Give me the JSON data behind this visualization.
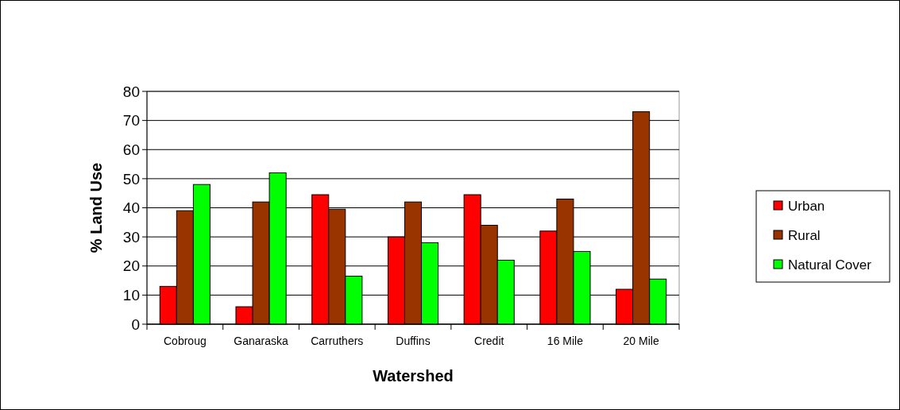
{
  "chart_data": {
    "type": "bar",
    "xlabel": "Watershed",
    "ylabel": "% Land Use",
    "categories": [
      "Cobroug",
      "Ganaraska",
      "Carruthers",
      "Duffins",
      "Credit",
      "16 Mile",
      "20 Mile"
    ],
    "series": [
      {
        "name": "Urban",
        "color": "#ff0000",
        "values": [
          13,
          6,
          44.5,
          30,
          44.5,
          32,
          12
        ]
      },
      {
        "name": "Rural",
        "color": "#993300",
        "values": [
          39,
          42,
          39.5,
          42,
          34,
          43,
          73
        ]
      },
      {
        "name": "Natural Cover",
        "color": "#00ff00",
        "values": [
          48,
          52,
          16.5,
          28,
          22,
          25,
          15.5
        ]
      }
    ],
    "ylim": [
      0,
      80
    ],
    "yticks": [
      0,
      10,
      20,
      30,
      40,
      50,
      60,
      70,
      80
    ],
    "grid": "y",
    "legend": "right"
  }
}
